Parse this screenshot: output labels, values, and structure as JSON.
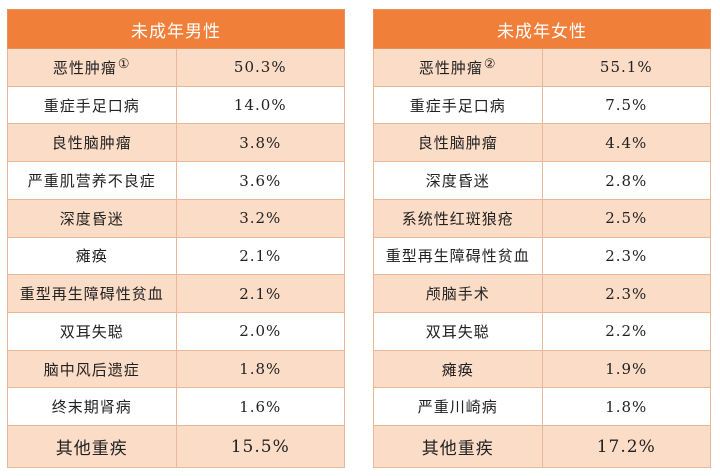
{
  "left_table": {
    "title": "未成年男性",
    "rows": [
      {
        "label": "恶性肿瘤",
        "note": "①",
        "value": "50.3%"
      },
      {
        "label": "重症手足口病",
        "value": "14.0%"
      },
      {
        "label": "良性脑肿瘤",
        "value": "3.8%"
      },
      {
        "label": "严重肌营养不良症",
        "value": "3.6%"
      },
      {
        "label": "深度昏迷",
        "value": "3.2%"
      },
      {
        "label": "瘫痪",
        "value": "2.1%"
      },
      {
        "label": "重型再生障碍性贫血",
        "value": "2.1%"
      },
      {
        "label": "双耳失聪",
        "value": "2.0%"
      },
      {
        "label": "脑中风后遗症",
        "value": "1.8%"
      },
      {
        "label": "终末期肾病",
        "value": "1.6%"
      },
      {
        "label": "其他重疾",
        "value": "15.5%"
      }
    ]
  },
  "right_table": {
    "title": "未成年女性",
    "rows": [
      {
        "label": "恶性肿瘤",
        "note": "②",
        "value": "55.1%"
      },
      {
        "label": "重症手足口病",
        "value": "7.5%"
      },
      {
        "label": "良性脑肿瘤",
        "value": "4.4%"
      },
      {
        "label": "深度昏迷",
        "value": "2.8%"
      },
      {
        "label": "系统性红斑狼疮",
        "value": "2.5%"
      },
      {
        "label": "重型再生障碍性贫血",
        "value": "2.3%"
      },
      {
        "label": "颅脑手术",
        "value": "2.3%"
      },
      {
        "label": "双耳失聪",
        "value": "2.2%"
      },
      {
        "label": "瘫痪",
        "value": "1.9%"
      },
      {
        "label": "严重川崎病",
        "value": "1.8%"
      },
      {
        "label": "其他重疾",
        "value": "17.2%"
      }
    ]
  },
  "colors": {
    "header_bg": "#f07f3a",
    "row_alt_bg": "#fbdcc7",
    "row_bg": "#ffffff"
  }
}
